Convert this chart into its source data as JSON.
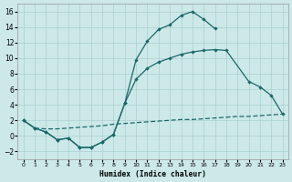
{
  "xlabel": "Humidex (Indice chaleur)",
  "bg_color": "#cce8e8",
  "grid_color": "#aad0d0",
  "line_color": "#1a6868",
  "xlim": [
    -0.5,
    23.5
  ],
  "ylim": [
    -3.0,
    17.0
  ],
  "x_ticks": [
    0,
    1,
    2,
    3,
    4,
    5,
    6,
    7,
    8,
    9,
    10,
    11,
    12,
    13,
    14,
    15,
    16,
    17,
    18,
    19,
    20,
    21,
    22,
    23
  ],
  "y_ticks": [
    -2,
    0,
    2,
    4,
    6,
    8,
    10,
    12,
    14,
    16
  ],
  "curve1_x": [
    0,
    1,
    2,
    3,
    4,
    5,
    6,
    7,
    8,
    9,
    10,
    11,
    12,
    13,
    14,
    15,
    16,
    17
  ],
  "curve1_y": [
    2.0,
    1.0,
    0.5,
    -0.5,
    -0.3,
    -1.5,
    -1.5,
    -0.8,
    0.2,
    4.2,
    9.8,
    12.2,
    13.7,
    14.3,
    15.5,
    16.0,
    15.0,
    13.8
  ],
  "curve2_x": [
    0,
    1,
    2,
    3,
    4,
    5,
    6,
    7,
    8,
    9,
    10,
    11,
    12,
    13,
    14,
    15,
    16,
    17,
    18,
    20,
    21,
    22,
    23
  ],
  "curve2_y": [
    2.0,
    1.0,
    0.5,
    -0.5,
    -0.3,
    -1.5,
    -1.5,
    -0.8,
    0.2,
    4.2,
    7.3,
    8.7,
    9.5,
    10.0,
    10.5,
    10.8,
    11.0,
    11.1,
    11.0,
    7.0,
    6.3,
    5.2,
    2.8
  ],
  "curve3_x": [
    0,
    1,
    2,
    3,
    4,
    5,
    6,
    7,
    8,
    9,
    10,
    11,
    12,
    13,
    14,
    15,
    16,
    17,
    18,
    19,
    20,
    21,
    22,
    23
  ],
  "curve3_y": [
    2.0,
    1.0,
    0.9,
    0.9,
    1.0,
    1.1,
    1.2,
    1.3,
    1.5,
    1.6,
    1.7,
    1.8,
    1.9,
    2.0,
    2.1,
    2.1,
    2.2,
    2.3,
    2.4,
    2.5,
    2.5,
    2.6,
    2.7,
    2.8
  ]
}
